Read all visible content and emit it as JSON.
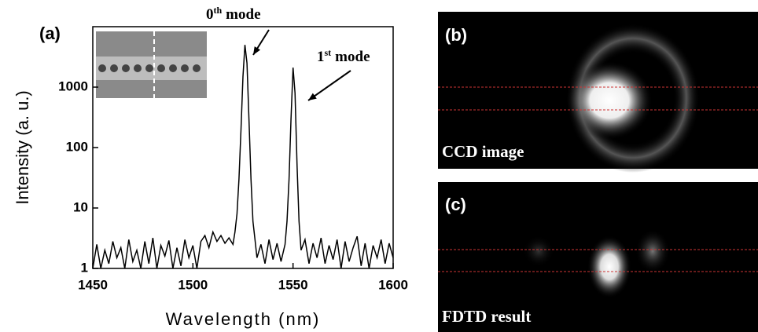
{
  "chart_data": {
    "type": "line",
    "panel_label": "(a)",
    "xlabel": "Wavelength (nm)",
    "ylabel": "Intensity (a. u.)",
    "x": [
      1450,
      1452,
      1454,
      1456,
      1458,
      1460,
      1462,
      1464,
      1466,
      1468,
      1470,
      1472,
      1474,
      1476,
      1478,
      1480,
      1482,
      1484,
      1486,
      1488,
      1490,
      1492,
      1494,
      1496,
      1498,
      1500,
      1502,
      1504,
      1506,
      1508,
      1510,
      1512,
      1514,
      1516,
      1518,
      1520,
      1521,
      1522,
      1523,
      1524,
      1525,
      1526,
      1527,
      1528,
      1529,
      1530,
      1531,
      1532,
      1534,
      1536,
      1538,
      1540,
      1542,
      1544,
      1546,
      1547,
      1548,
      1549,
      1550,
      1551,
      1552,
      1553,
      1554,
      1556,
      1558,
      1560,
      1562,
      1564,
      1566,
      1568,
      1570,
      1572,
      1574,
      1576,
      1578,
      1580,
      1582,
      1584,
      1586,
      1588,
      1590,
      1592,
      1594,
      1596,
      1598,
      1600
    ],
    "values": [
      1,
      2.5,
      1,
      2,
      1.2,
      2.8,
      1.5,
      2.2,
      1,
      3,
      1.3,
      2,
      1,
      2.8,
      1.2,
      3.2,
      1,
      2.4,
      1.6,
      2.9,
      1,
      2.2,
      1.1,
      3,
      1.5,
      2.4,
      1,
      2.8,
      3.5,
      2.2,
      4,
      2.8,
      3.5,
      2.6,
      3.2,
      2.5,
      4,
      8,
      30,
      200,
      1500,
      5000,
      2500,
      300,
      30,
      6,
      3,
      1.5,
      2.5,
      1.2,
      3,
      1.4,
      2.6,
      1.3,
      2.5,
      6,
      30,
      300,
      2100,
      800,
      50,
      6,
      2,
      3,
      1.2,
      2.6,
      1.5,
      3.2,
      1.2,
      2.4,
      1.4,
      3,
      1,
      2.8,
      1.3,
      2.2,
      3.4,
      1.1,
      2.6,
      1,
      2.4,
      1.5,
      3,
      1.2,
      2.6,
      1.5
    ],
    "color": "#000000",
    "log_y": true,
    "xlim": [
      1450,
      1600
    ],
    "xticks": [
      1450,
      1500,
      1550,
      1600
    ],
    "ylim": [
      1,
      10000
    ],
    "yticks": [
      1,
      10,
      100,
      {
        "value": 1000,
        "label": "1000"
      }
    ],
    "annotations": [
      {
        "base": "0",
        "sup": "th",
        "tail": "mode"
      },
      {
        "base": "1",
        "sup": "st",
        "tail": "mode"
      }
    ]
  },
  "panels": [
    {
      "label": "(b)",
      "caption": "CCD image"
    },
    {
      "label": "(c)",
      "caption": "FDTD result"
    }
  ]
}
